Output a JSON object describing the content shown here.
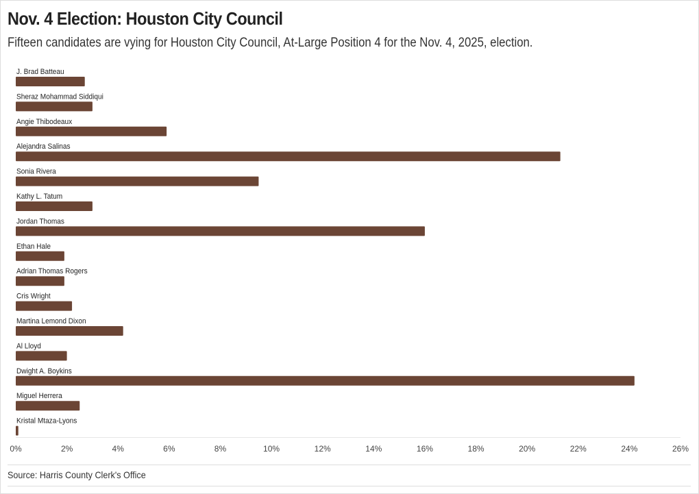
{
  "header": {
    "title": "Nov. 4 Election: Houston City Council",
    "subtitle": "Fifteen candidates are vying for Houston City Council, At-Large Position 4 for the Nov. 4, 2025, election."
  },
  "footer": {
    "source": "Source: Harris County Clerk's Office"
  },
  "colors": {
    "bar": "#6b4535",
    "grid": "#e6e6e6"
  },
  "chart_data": {
    "type": "bar",
    "orientation": "horizontal",
    "title": "Nov. 4 Election: Houston City Council",
    "xlabel": "",
    "ylabel": "",
    "xlim": [
      0,
      26
    ],
    "x_ticks": [
      "0%",
      "2%",
      "4%",
      "6%",
      "8%",
      "10%",
      "12%",
      "14%",
      "16%",
      "18%",
      "20%",
      "22%",
      "24%",
      "26%"
    ],
    "x_tick_values": [
      0,
      2,
      4,
      6,
      8,
      10,
      12,
      14,
      16,
      18,
      20,
      22,
      24,
      26
    ],
    "categories": [
      "J. Brad Batteau",
      "Sheraz Mohammad Siddiqui",
      "Angie Thibodeaux",
      "Alejandra Salinas",
      "Sonia Rivera",
      "Kathy L. Tatum",
      "Jordan Thomas",
      "Ethan Hale",
      "Adrian Thomas Rogers",
      "Cris Wright",
      "Martina Lemond Dixon",
      "Al Lloyd",
      "Dwight A. Boykins",
      "Miguel Herrera",
      "Kristal Mtaza-Lyons"
    ],
    "values": [
      2.7,
      3.0,
      5.9,
      21.3,
      9.5,
      3.0,
      16.0,
      1.9,
      1.9,
      2.2,
      4.2,
      2.0,
      24.2,
      2.5,
      0.1
    ],
    "unit": "%"
  }
}
